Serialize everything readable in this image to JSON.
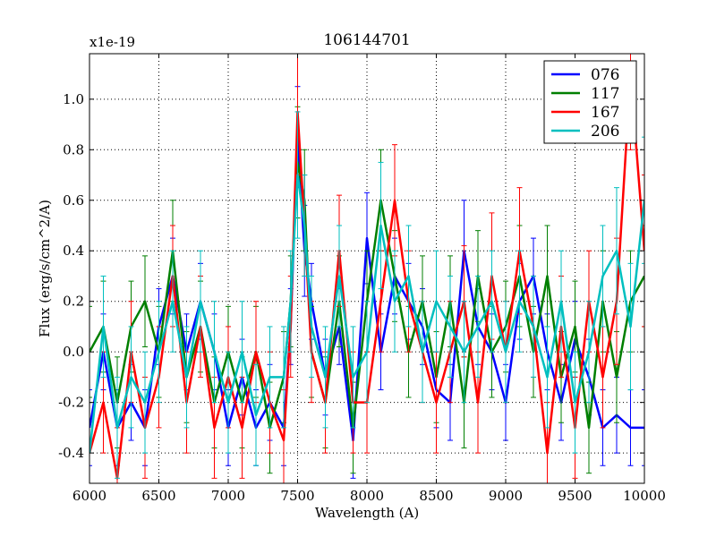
{
  "chart_data": {
    "type": "line",
    "title": "106144701",
    "xlabel": "Wavelength (A)",
    "ylabel": "Flux (erg/s/cm^2/A)",
    "offset_text": "x1e-19",
    "xlim": [
      6000,
      10000
    ],
    "ylim": [
      -0.52,
      1.18
    ],
    "xticks": [
      6000,
      6500,
      7000,
      7500,
      8000,
      8500,
      9000,
      9500,
      10000
    ],
    "xtick_labels": [
      "6000",
      "6500",
      "7000",
      "7500",
      "8000",
      "8500",
      "9000",
      "9500",
      "10000"
    ],
    "yticks": [
      -0.4,
      -0.2,
      0.0,
      0.2,
      0.4,
      0.6,
      0.8,
      1.0
    ],
    "ytick_labels": [
      "-0.4",
      "-0.2",
      "0.0",
      "0.2",
      "0.4",
      "0.6",
      "0.8",
      "1.0"
    ],
    "grid": true,
    "legend_position": "top-right",
    "series": [
      {
        "name": "076",
        "color": "#0000ff",
        "x": [
          6000,
          6100,
          6200,
          6300,
          6400,
          6500,
          6600,
          6700,
          6800,
          6900,
          7000,
          7100,
          7200,
          7300,
          7400,
          7450,
          7500,
          7550,
          7600,
          7700,
          7800,
          7900,
          8000,
          8100,
          8200,
          8300,
          8400,
          8500,
          8600,
          8700,
          8800,
          8900,
          9000,
          9100,
          9200,
          9300,
          9400,
          9500,
          9600,
          9700,
          9800,
          9900,
          10000
        ],
        "y": [
          -0.3,
          0.0,
          -0.3,
          -0.2,
          -0.3,
          0.1,
          0.3,
          0.0,
          0.2,
          0.0,
          -0.3,
          -0.1,
          -0.3,
          -0.2,
          -0.3,
          0.1,
          0.85,
          0.4,
          0.2,
          -0.1,
          0.1,
          -0.35,
          0.45,
          0.0,
          0.3,
          0.2,
          0.1,
          -0.15,
          -0.2,
          0.4,
          0.1,
          0.0,
          -0.2,
          0.2,
          0.3,
          0.0,
          -0.2,
          0.05,
          -0.1,
          -0.3,
          -0.25,
          -0.3,
          -0.3
        ],
        "err": [
          0.15,
          0.15,
          0.15,
          0.15,
          0.15,
          0.15,
          0.15,
          0.15,
          0.15,
          0.15,
          0.15,
          0.15,
          0.15,
          0.15,
          0.15,
          0.15,
          0.2,
          0.18,
          0.15,
          0.15,
          0.15,
          0.15,
          0.18,
          0.15,
          0.15,
          0.15,
          0.15,
          0.15,
          0.15,
          0.2,
          0.15,
          0.15,
          0.15,
          0.15,
          0.15,
          0.15,
          0.15,
          0.15,
          0.15,
          0.15,
          0.15,
          0.15,
          0.15
        ]
      },
      {
        "name": "117",
        "color": "#007f00",
        "x": [
          6000,
          6100,
          6200,
          6300,
          6400,
          6500,
          6600,
          6700,
          6800,
          6900,
          7000,
          7100,
          7200,
          7300,
          7400,
          7450,
          7500,
          7550,
          7600,
          7700,
          7800,
          7900,
          8000,
          8100,
          8200,
          8300,
          8400,
          8500,
          8600,
          8700,
          8800,
          8900,
          9000,
          9100,
          9200,
          9300,
          9400,
          9500,
          9600,
          9700,
          9800,
          9900,
          10000
        ],
        "y": [
          0.0,
          0.1,
          -0.2,
          0.1,
          0.2,
          0.0,
          0.4,
          -0.1,
          0.1,
          -0.2,
          0.0,
          -0.2,
          0.0,
          -0.3,
          -0.1,
          0.2,
          0.75,
          0.6,
          0.0,
          -0.2,
          0.2,
          -0.3,
          0.2,
          0.6,
          0.3,
          0.0,
          0.2,
          -0.1,
          0.2,
          -0.2,
          0.3,
          0.0,
          0.1,
          0.3,
          0.0,
          0.3,
          -0.1,
          0.1,
          -0.3,
          0.2,
          -0.1,
          0.2,
          0.3
        ],
        "err": [
          0.18,
          0.18,
          0.18,
          0.18,
          0.18,
          0.18,
          0.2,
          0.18,
          0.18,
          0.18,
          0.18,
          0.18,
          0.18,
          0.18,
          0.18,
          0.18,
          0.22,
          0.2,
          0.18,
          0.18,
          0.18,
          0.18,
          0.2,
          0.2,
          0.18,
          0.18,
          0.18,
          0.18,
          0.18,
          0.18,
          0.18,
          0.18,
          0.18,
          0.2,
          0.18,
          0.2,
          0.18,
          0.18,
          0.18,
          0.2,
          0.18,
          0.2,
          0.2
        ]
      },
      {
        "name": "167",
        "color": "#ff0000",
        "x": [
          6000,
          6100,
          6200,
          6300,
          6400,
          6500,
          6600,
          6700,
          6800,
          6900,
          7000,
          7100,
          7200,
          7300,
          7400,
          7450,
          7500,
          7550,
          7600,
          7700,
          7800,
          7900,
          8000,
          8100,
          8200,
          8300,
          8400,
          8500,
          8600,
          8700,
          8800,
          8900,
          9000,
          9100,
          9200,
          9300,
          9400,
          9500,
          9600,
          9700,
          9800,
          9900,
          10000
        ],
        "y": [
          -0.4,
          -0.2,
          -0.5,
          0.0,
          -0.3,
          -0.1,
          0.3,
          -0.2,
          0.1,
          -0.3,
          -0.1,
          -0.3,
          0.0,
          -0.2,
          -0.35,
          0.1,
          0.95,
          0.5,
          0.0,
          -0.2,
          0.4,
          -0.2,
          -0.2,
          0.2,
          0.6,
          0.2,
          0.0,
          -0.2,
          0.0,
          0.2,
          -0.2,
          0.3,
          0.0,
          0.4,
          0.1,
          -0.4,
          0.1,
          -0.3,
          0.2,
          -0.1,
          0.2,
          1.1,
          0.4
        ],
        "err": [
          0.2,
          0.2,
          0.2,
          0.2,
          0.2,
          0.2,
          0.2,
          0.2,
          0.2,
          0.2,
          0.2,
          0.2,
          0.2,
          0.2,
          0.2,
          0.2,
          0.25,
          0.2,
          0.2,
          0.2,
          0.22,
          0.2,
          0.2,
          0.2,
          0.22,
          0.2,
          0.2,
          0.2,
          0.2,
          0.22,
          0.2,
          0.25,
          0.2,
          0.25,
          0.2,
          0.2,
          0.2,
          0.2,
          0.2,
          0.2,
          0.25,
          0.3,
          0.3
        ]
      },
      {
        "name": "206",
        "color": "#00bfbf",
        "x": [
          6000,
          6100,
          6200,
          6300,
          6400,
          6500,
          6600,
          6700,
          6800,
          6900,
          7000,
          7100,
          7200,
          7300,
          7400,
          7450,
          7500,
          7550,
          7600,
          7700,
          7800,
          7900,
          8000,
          8100,
          8200,
          8300,
          8400,
          8500,
          8600,
          8700,
          8800,
          8900,
          9000,
          9100,
          9200,
          9300,
          9400,
          9500,
          9600,
          9700,
          9800,
          9900,
          10000
        ],
        "y": [
          -0.4,
          0.1,
          -0.3,
          -0.1,
          -0.2,
          0.0,
          0.2,
          -0.1,
          0.2,
          0.0,
          -0.2,
          0.0,
          -0.25,
          -0.1,
          -0.1,
          0.2,
          0.7,
          0.5,
          0.1,
          -0.1,
          0.3,
          -0.1,
          0.0,
          0.5,
          0.2,
          0.3,
          0.0,
          0.2,
          0.1,
          0.0,
          0.1,
          0.2,
          0.0,
          0.2,
          0.1,
          -0.1,
          0.2,
          -0.2,
          0.0,
          0.3,
          0.4,
          0.1,
          0.6
        ],
        "err": [
          0.2,
          0.2,
          0.2,
          0.2,
          0.2,
          0.2,
          0.2,
          0.2,
          0.2,
          0.2,
          0.2,
          0.2,
          0.2,
          0.2,
          0.2,
          0.2,
          0.25,
          0.2,
          0.2,
          0.2,
          0.2,
          0.2,
          0.2,
          0.25,
          0.2,
          0.2,
          0.2,
          0.2,
          0.2,
          0.2,
          0.2,
          0.2,
          0.2,
          0.2,
          0.2,
          0.2,
          0.2,
          0.2,
          0.2,
          0.2,
          0.25,
          0.25,
          0.25
        ]
      }
    ]
  }
}
